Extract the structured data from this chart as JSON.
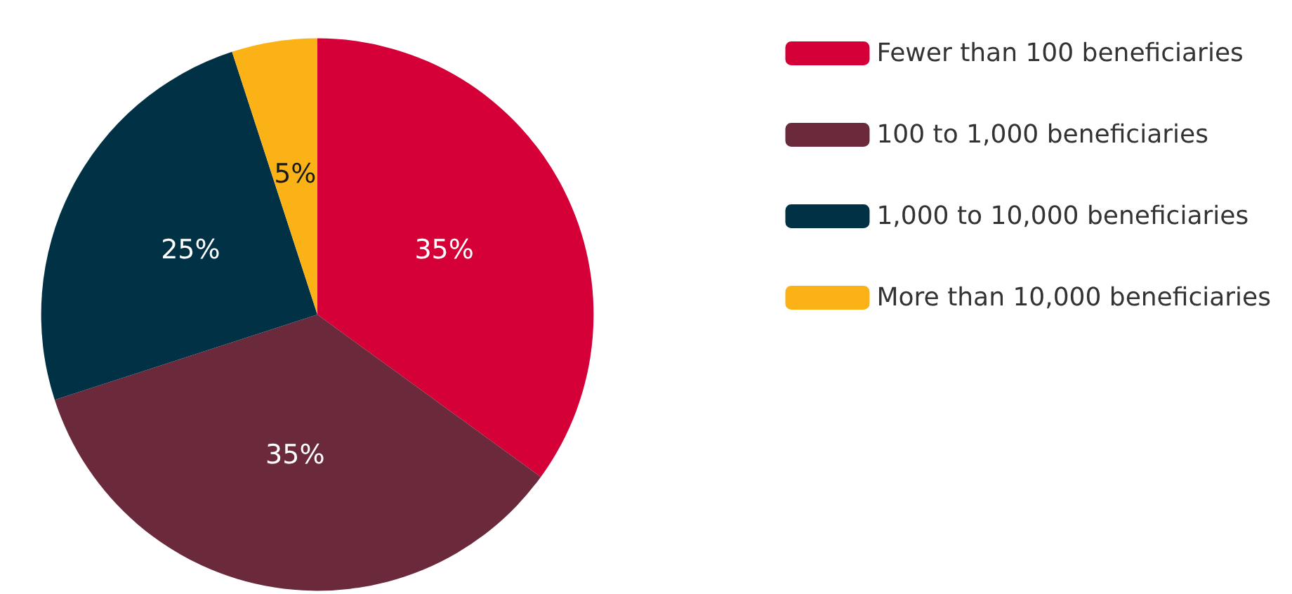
{
  "chart_data": {
    "type": "pie",
    "categories": [
      "Fewer than 100 beneficiaries",
      "100 to 1,000 beneficiaries",
      "1,000 to 10,000 beneficiaries",
      "More than 10,000 beneficiaries"
    ],
    "values": [
      35,
      35,
      25,
      5
    ],
    "value_labels": [
      "35%",
      "35%",
      "25%",
      "5%"
    ],
    "colors": [
      "#d50037",
      "#6b2a3b",
      "#003145",
      "#fbb216"
    ],
    "legend": "top right"
  }
}
